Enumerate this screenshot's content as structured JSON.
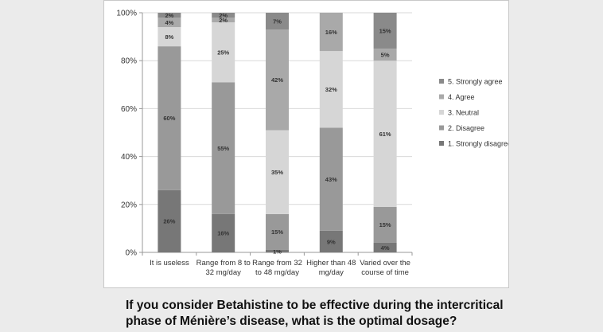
{
  "caption": {
    "line1": "If you consider Betahistine to be effective during the intercritical",
    "line2": "phase of Ménière’s disease, what is the optimal dosage?"
  },
  "chart_data": {
    "type": "bar",
    "stacked": true,
    "orientation": "vertical",
    "categories": [
      [
        "It is useless"
      ],
      [
        "Range from 8 to",
        "32 mg/day"
      ],
      [
        "Range from 32",
        "to 48 mg/day"
      ],
      [
        "Higher than 48",
        "mg/day"
      ],
      [
        "Varied over the",
        "course of time"
      ]
    ],
    "series": [
      {
        "name": "1. Strongly disagree",
        "color": "#777777",
        "values": [
          26,
          16,
          1,
          9,
          4
        ],
        "labels": [
          "26%",
          "16%",
          "1%",
          "9%",
          "4%"
        ]
      },
      {
        "name": "2. Disagree",
        "color": "#999999",
        "values": [
          60,
          55,
          15,
          43,
          15
        ],
        "labels": [
          "60%",
          "55%",
          "15%",
          "43%",
          "15%"
        ]
      },
      {
        "name": "3. Neutral",
        "color": "#d6d6d6",
        "values": [
          8,
          25,
          35,
          32,
          61
        ],
        "labels": [
          "8%",
          "25%",
          "35%",
          "32%",
          "61%"
        ]
      },
      {
        "name": "4. Agree",
        "color": "#a9a9a9",
        "values": [
          4,
          2,
          42,
          16,
          5
        ],
        "labels": [
          "4%",
          "2%",
          "42%",
          "16%",
          "5%"
        ]
      },
      {
        "name": "5. Strongly agree",
        "color": "#8a8a8a",
        "values": [
          2,
          2,
          7,
          0,
          15
        ],
        "labels": [
          "2%",
          "2%",
          "7%",
          "",
          "15%"
        ]
      }
    ],
    "yticks": [
      "0%",
      "20%",
      "40%",
      "60%",
      "80%",
      "100%"
    ],
    "ylim": [
      0,
      100
    ],
    "grid": true,
    "legend_position": "right",
    "legend_order": [
      "5. Strongly agree",
      "4. Agree",
      "3. Neutral",
      "2. Disagree",
      "1. Strongly disagree"
    ]
  }
}
